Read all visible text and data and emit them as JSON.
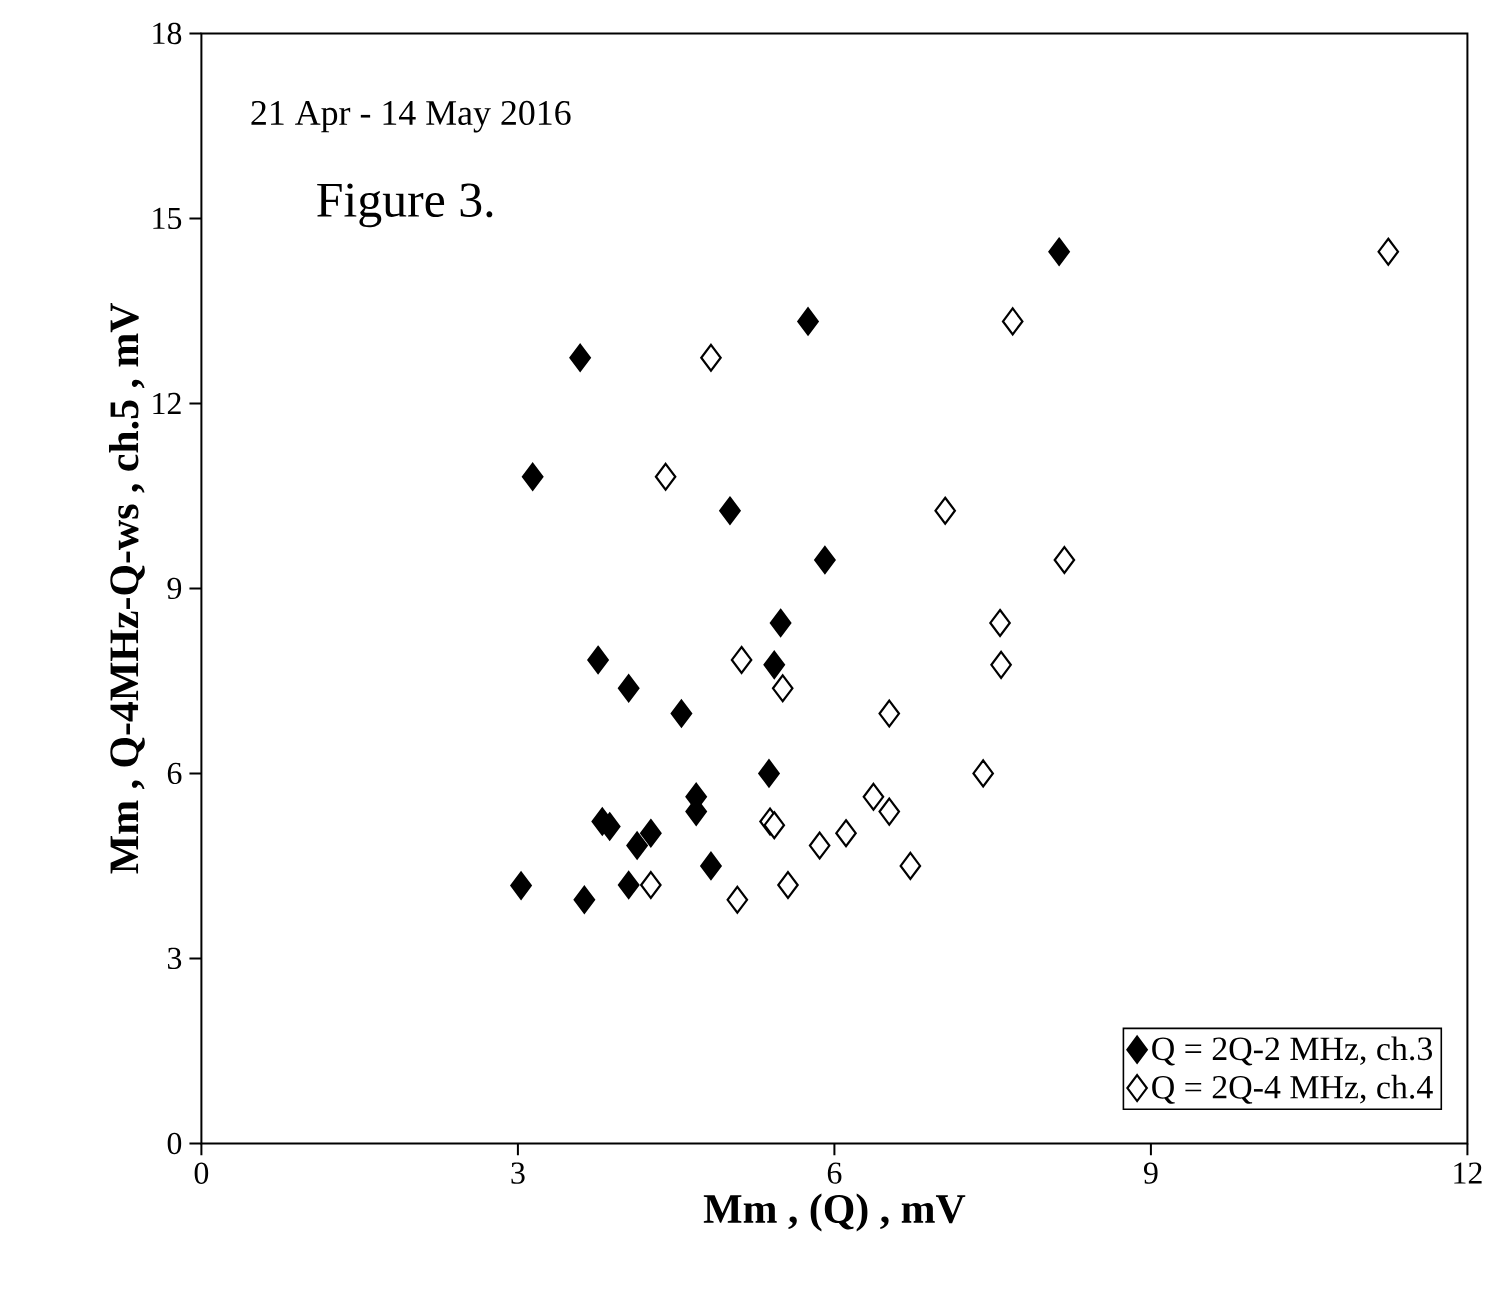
{
  "chart_data": {
    "type": "scatter",
    "xlabel": "Mm ,   (Q) , mV",
    "ylabel": "Mm  , Q-4MHz-Q-ws , ch.5 , mV",
    "annotations": [
      "21 Apr - 14 May 2016",
      "Figure 3."
    ],
    "xlim": [
      0,
      12
    ],
    "xticks": [
      0,
      3,
      6,
      9,
      12
    ],
    "ylim": [
      0,
      18
    ],
    "yticks": [
      0,
      3,
      6,
      9,
      12,
      15,
      18
    ],
    "grid": false,
    "legend": "bottom right",
    "marker": "diamond",
    "series": [
      {
        "name": "Q = 2Q-2 MHz, ch.3",
        "color": "#000000",
        "x": [
          3.03,
          3.14,
          3.59,
          3.63,
          3.76,
          3.8,
          3.87,
          4.05,
          4.05,
          4.13,
          4.26,
          4.55,
          4.69,
          4.69,
          4.83,
          5.01,
          5.38,
          5.43,
          5.49,
          5.75,
          5.91,
          8.13
        ],
        "values": [
          4.18,
          10.81,
          12.74,
          3.95,
          7.84,
          5.22,
          5.14,
          7.38,
          4.19,
          4.83,
          5.03,
          6.97,
          5.62,
          5.38,
          4.5,
          10.26,
          6.0,
          7.76,
          8.44,
          13.33,
          9.46,
          14.46
        ]
      },
      {
        "name": "Q = 2Q-4 MHz, ch.4",
        "color": "#ffffff",
        "x": [
          4.83,
          4.4,
          5.12,
          5.51,
          5.39,
          5.43,
          4.26,
          5.08,
          5.56,
          5.86,
          6.11,
          7.69,
          7.05,
          8.18,
          7.57,
          7.58,
          6.52,
          7.41,
          6.37,
          6.52,
          6.72,
          11.25
        ],
        "values": [
          12.74,
          10.81,
          7.84,
          7.38,
          5.22,
          5.16,
          4.19,
          3.95,
          4.19,
          4.83,
          5.03,
          13.33,
          10.26,
          9.46,
          8.44,
          7.76,
          6.97,
          6.0,
          5.62,
          5.38,
          4.5,
          14.46
        ]
      }
    ]
  }
}
